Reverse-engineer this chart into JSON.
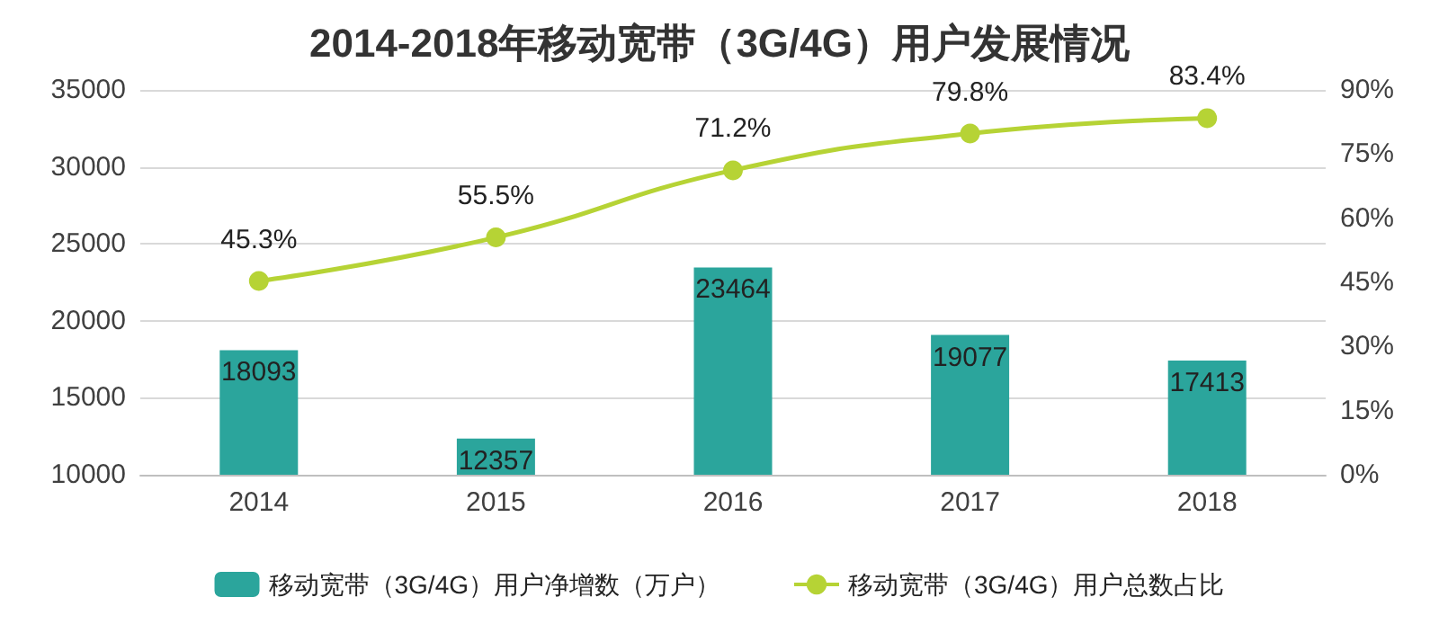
{
  "chart_data": {
    "type": "bar",
    "title": "2014-2018年移动宽带（3G/4G）用户发展情况",
    "categories": [
      "2014",
      "2015",
      "2016",
      "2017",
      "2018"
    ],
    "series": [
      {
        "name": "移动宽带（3G/4G）用户净增数（万户）",
        "color": "#2ba59c",
        "values": [
          18093,
          12357,
          23464,
          19077,
          17413
        ],
        "value_labels": [
          "18093",
          "12357",
          "23464",
          "19077",
          "17413"
        ]
      },
      {
        "name": "移动宽带（3G/4G）用户总数占比",
        "type": "line",
        "axis": "y2",
        "color": "#b6d335",
        "values": [
          45.3,
          55.5,
          71.2,
          79.8,
          83.4
        ],
        "value_labels": [
          "45.3%",
          "55.5%",
          "71.2%",
          "79.8%",
          "83.4%"
        ]
      }
    ],
    "ylim": [
      10000,
      35000
    ],
    "yticks": [
      10000,
      15000,
      20000,
      25000,
      30000,
      35000
    ],
    "y2lim": [
      0,
      90
    ],
    "y2ticks": [
      {
        "value": 0,
        "label": "0%"
      },
      {
        "value": 15,
        "label": "15%"
      },
      {
        "value": 30,
        "label": "30%"
      },
      {
        "value": 45,
        "label": "45%"
      },
      {
        "value": 60,
        "label": "60%"
      },
      {
        "value": 75,
        "label": "75%"
      },
      {
        "value": 90,
        "label": "90%"
      }
    ],
    "grid": "y",
    "legend": "bottom",
    "marker": "circle"
  }
}
